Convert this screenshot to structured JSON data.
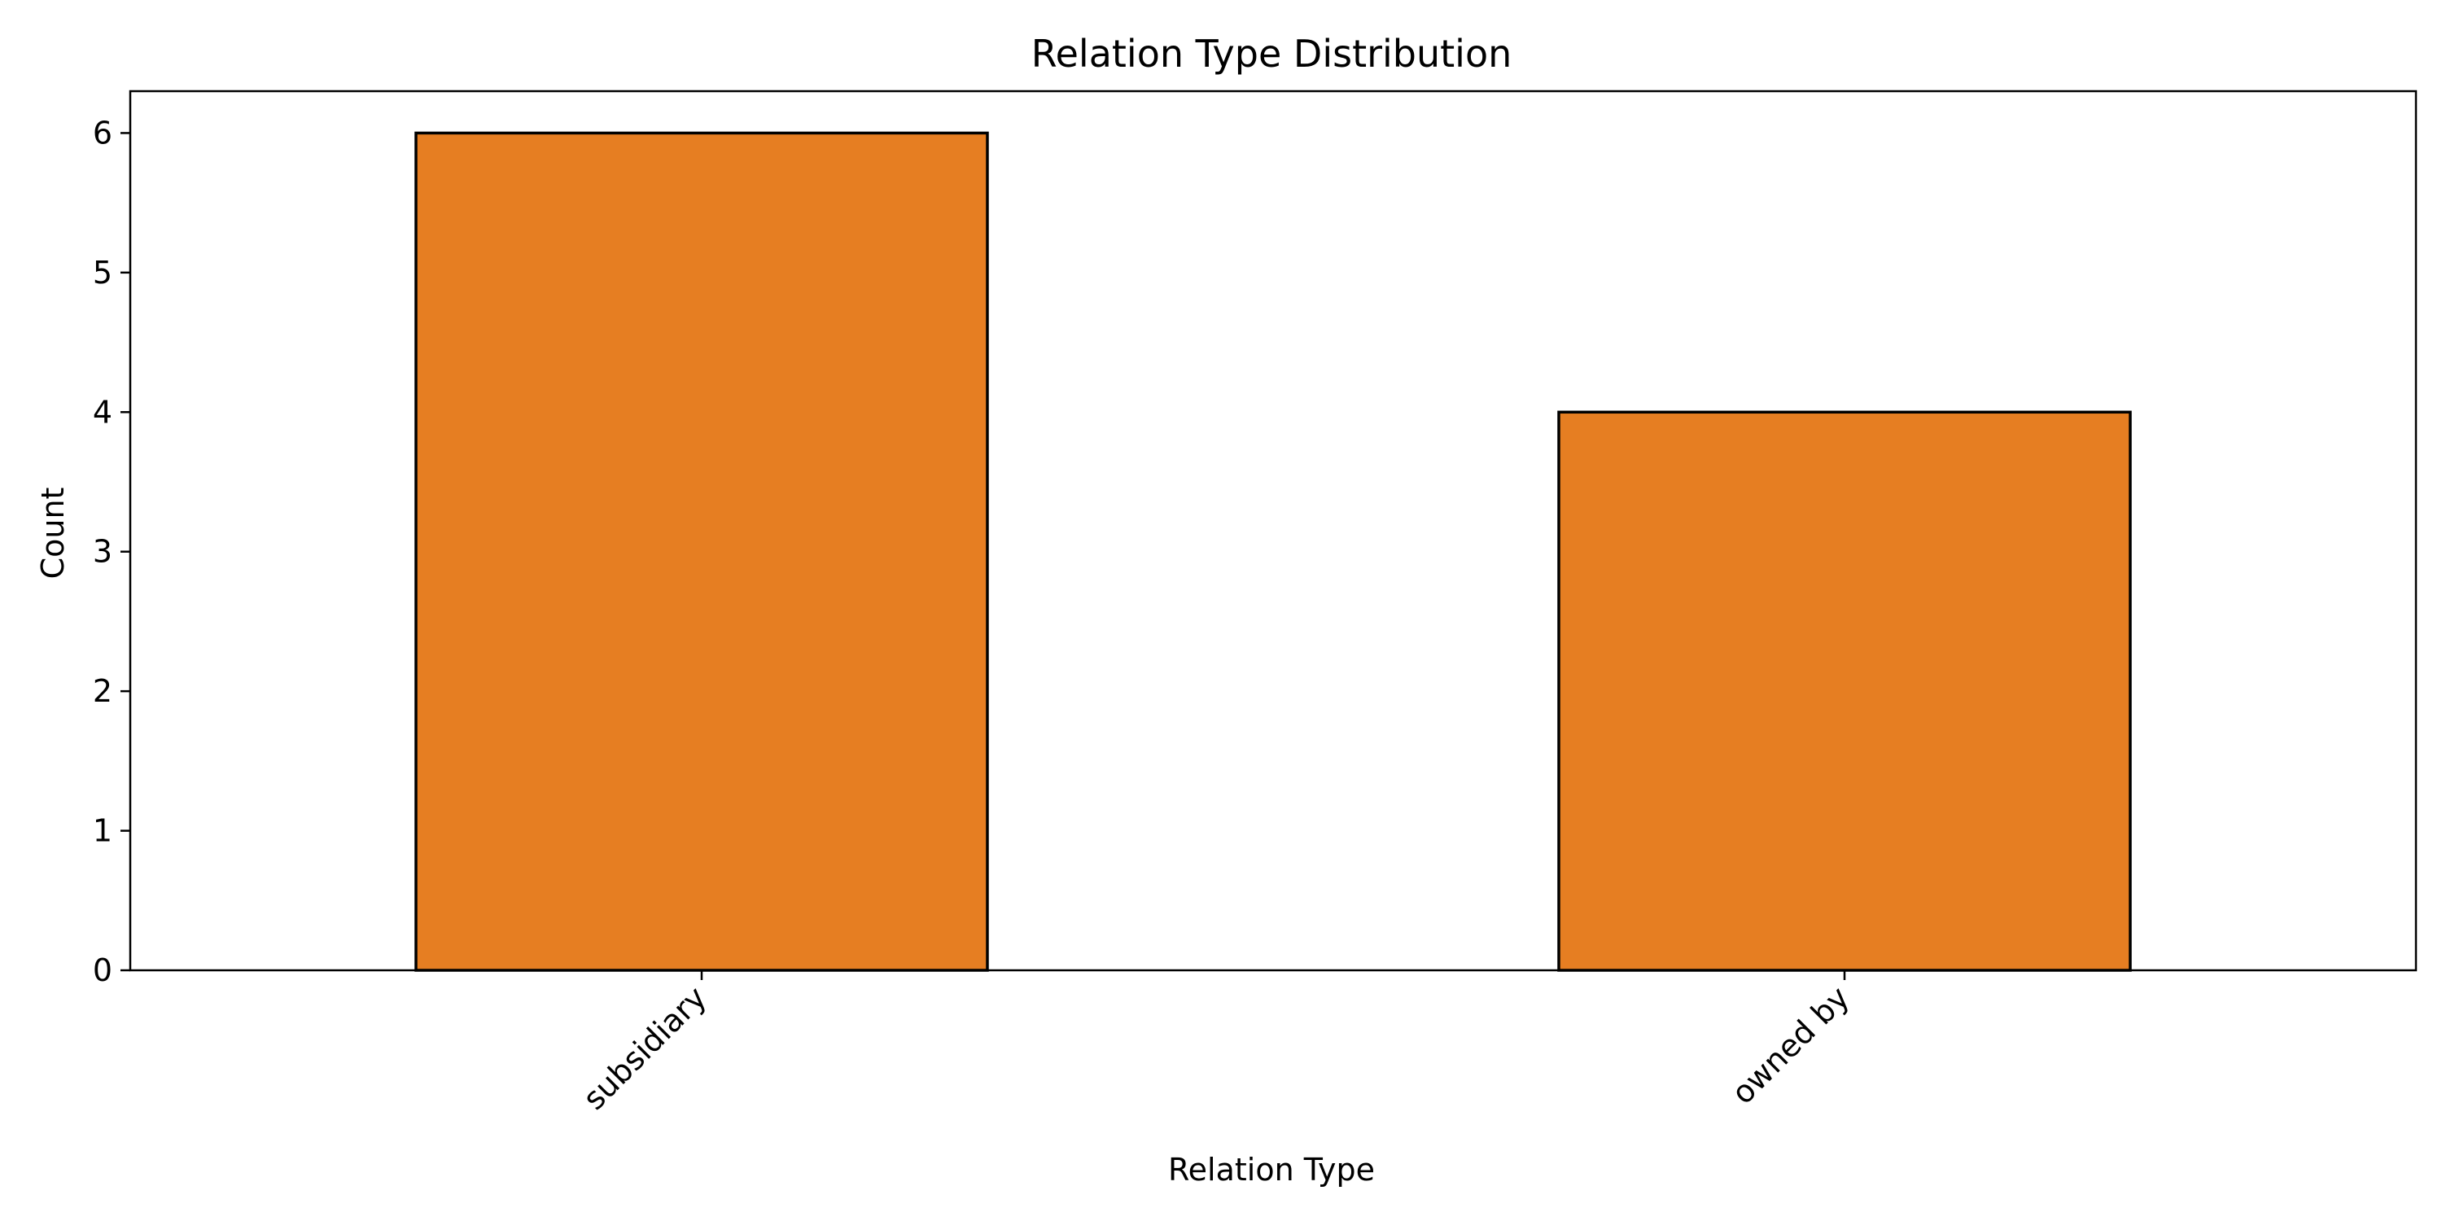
{
  "chart_data": {
    "type": "bar",
    "title": "Relation Type Distribution",
    "xlabel": "Relation Type",
    "ylabel": "Count",
    "categories": [
      "subsidiary",
      "owned by"
    ],
    "values": [
      6,
      4
    ],
    "ylim": [
      0,
      6.3
    ],
    "yticks": [
      "0",
      "1",
      "2",
      "3",
      "4",
      "5",
      "6"
    ],
    "bar_color": "#e67e22",
    "edge_color": "#000000",
    "grid": false,
    "legend": "none"
  }
}
